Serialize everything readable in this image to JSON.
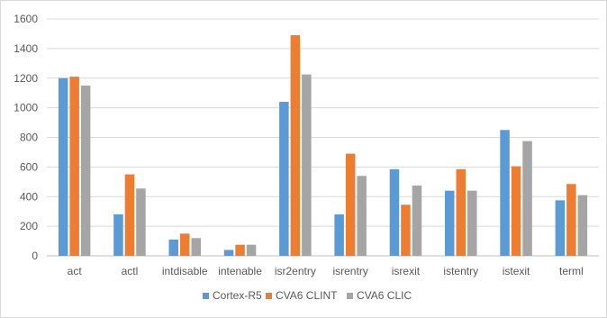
{
  "chart_data": {
    "type": "bar",
    "categories": [
      "act",
      "actl",
      "intdisable",
      "intenable",
      "isr2entry",
      "isrentry",
      "isrexit",
      "istentry",
      "istexit",
      "terml"
    ],
    "series": [
      {
        "name": "Cortex-R5",
        "color": "#5b9bd5",
        "values": [
          1200,
          280,
          110,
          40,
          1040,
          280,
          585,
          440,
          850,
          375
        ]
      },
      {
        "name": "CVA6 CLINT",
        "color": "#ed7d31",
        "values": [
          1210,
          550,
          150,
          75,
          1490,
          690,
          345,
          585,
          605,
          485
        ]
      },
      {
        "name": "CVA6 CLIC",
        "color": "#a5a5a5",
        "values": [
          1150,
          455,
          120,
          75,
          1225,
          540,
          475,
          440,
          775,
          410
        ]
      }
    ],
    "ylim": [
      0,
      1600
    ],
    "yticks": [
      0,
      200,
      400,
      600,
      800,
      1000,
      1200,
      1400,
      1600
    ],
    "grid": true,
    "legend_position": "bottom",
    "title": "",
    "xlabel": "",
    "ylabel": ""
  }
}
